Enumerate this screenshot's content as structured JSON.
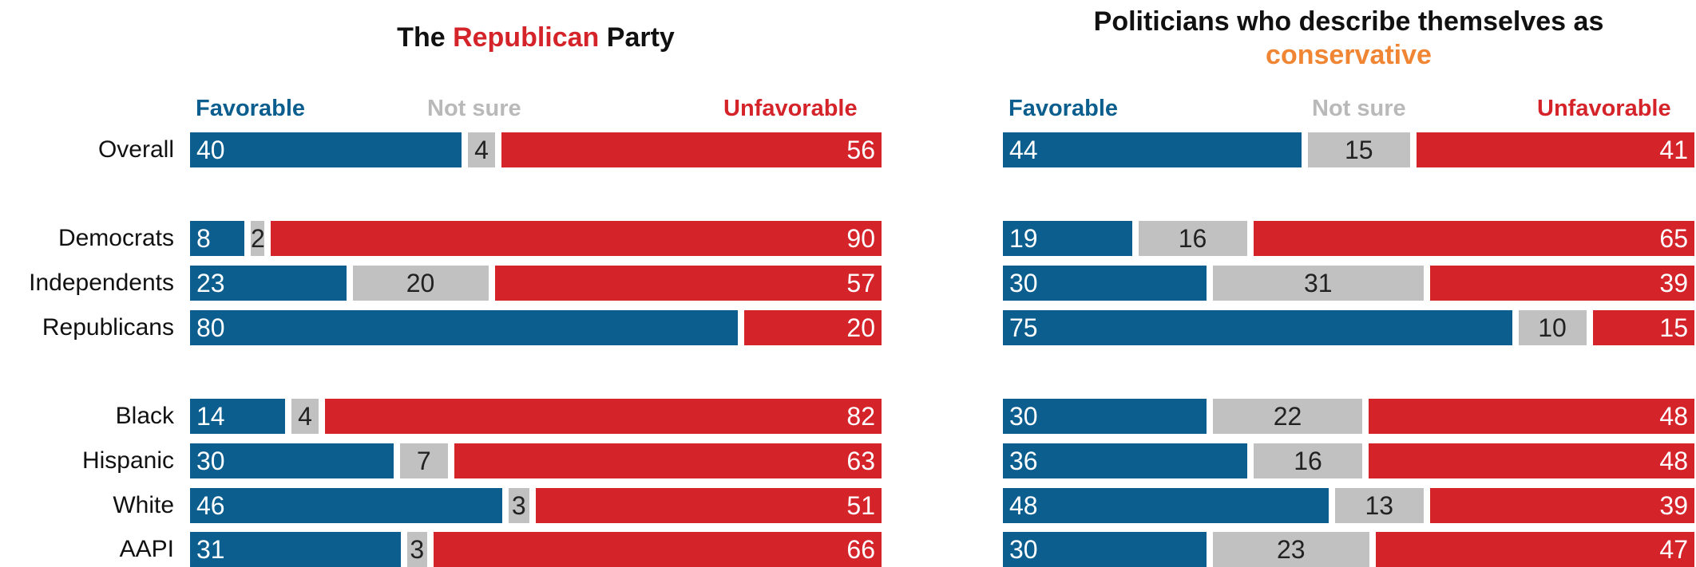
{
  "colors": {
    "favorable": "#0b5e8e",
    "not_sure": "#c1c1c1",
    "unfavorable": "#d5232a",
    "republican_accent": "#d5232a",
    "conservative_accent": "#f08533",
    "not_sure_label": "#b9b9b9"
  },
  "chart_data": [
    {
      "type": "bar",
      "stacked": true,
      "orientation": "horizontal",
      "title_parts": [
        "The ",
        "Republican",
        " Party"
      ],
      "legend": [
        "Favorable",
        "Not sure",
        "Unfavorable"
      ],
      "categories": [
        "Overall",
        "Democrats",
        "Independents",
        "Republicans",
        "Black",
        "Hispanic",
        "White",
        "AAPI"
      ],
      "groups": [
        [
          "Overall"
        ],
        [
          "Democrats",
          "Independents",
          "Republicans"
        ],
        [
          "Black",
          "Hispanic",
          "White",
          "AAPI"
        ]
      ],
      "series": [
        {
          "name": "Favorable",
          "values": [
            40,
            8,
            23,
            80,
            14,
            30,
            46,
            31
          ]
        },
        {
          "name": "Not sure",
          "values": [
            4,
            2,
            20,
            0,
            4,
            7,
            3,
            3
          ]
        },
        {
          "name": "Unfavorable",
          "values": [
            56,
            90,
            57,
            20,
            82,
            63,
            51,
            66
          ]
        }
      ],
      "xlim": [
        0,
        100
      ],
      "grid": false
    },
    {
      "type": "bar",
      "stacked": true,
      "orientation": "horizontal",
      "title_parts": [
        "Politicians who describe themselves as",
        "conservative"
      ],
      "legend": [
        "Favorable",
        "Not sure",
        "Unfavorable"
      ],
      "categories": [
        "Overall",
        "Democrats",
        "Independents",
        "Republicans",
        "Black",
        "Hispanic",
        "White",
        "AAPI"
      ],
      "groups": [
        [
          "Overall"
        ],
        [
          "Democrats",
          "Independents",
          "Republicans"
        ],
        [
          "Black",
          "Hispanic",
          "White",
          "AAPI"
        ]
      ],
      "series": [
        {
          "name": "Favorable",
          "values": [
            44,
            19,
            30,
            75,
            30,
            36,
            48,
            30
          ]
        },
        {
          "name": "Not sure",
          "values": [
            15,
            16,
            31,
            10,
            22,
            16,
            13,
            23
          ]
        },
        {
          "name": "Unfavorable",
          "values": [
            41,
            65,
            39,
            15,
            48,
            48,
            39,
            47
          ]
        }
      ],
      "xlim": [
        0,
        100
      ],
      "grid": false
    }
  ]
}
